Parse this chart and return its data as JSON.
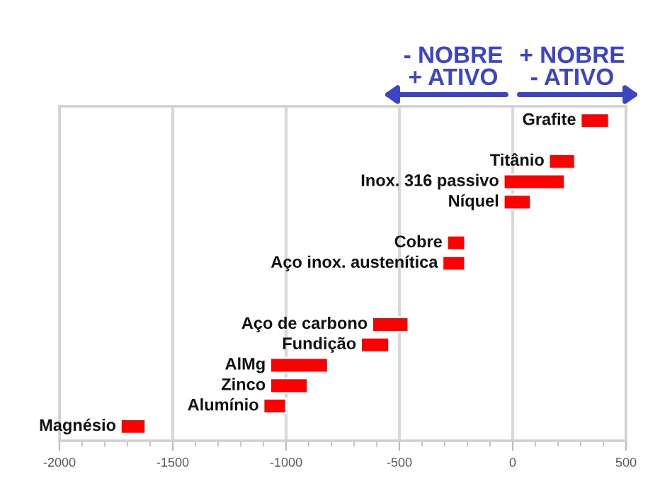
{
  "chart_data": {
    "type": "bar",
    "orientation": "horizontal",
    "tick_labels": "x",
    "categories": [
      "Grafite",
      null,
      "Titânio",
      "Inox. 316 passivo",
      "Níquel",
      null,
      "Cobre",
      "Aço inox. austenítica",
      null,
      null,
      "Aço de carbono",
      "Fundição",
      "AlMg",
      "Zinco",
      "Alumínio",
      "Magnésio"
    ],
    "base": [
      300,
      null,
      160,
      -40,
      -40,
      null,
      -290,
      -310,
      null,
      null,
      -620,
      -670,
      -1070,
      -1070,
      -1100,
      -1730
    ],
    "values": [
      125,
      null,
      115,
      270,
      120,
      null,
      80,
      100,
      null,
      null,
      160,
      125,
      255,
      165,
      100,
      110
    ],
    "color": "#ff0000",
    "xlim": [
      -2000,
      500
    ],
    "xticks": [
      -2000,
      -1500,
      -1000,
      -500,
      0,
      500
    ],
    "grid": "x",
    "annotations": [
      "- NOBRE\n+ ATIVO",
      "+ NOBRE\n- ATIVO"
    ]
  }
}
